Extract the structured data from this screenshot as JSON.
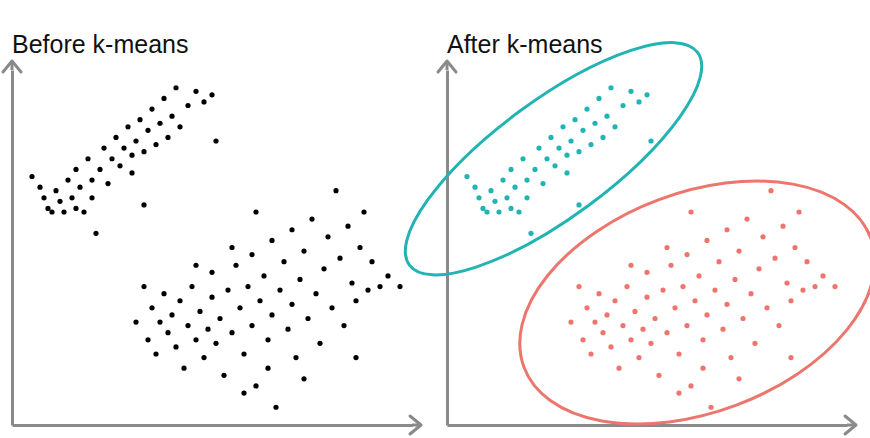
{
  "chart_data": [
    {
      "type": "scatter",
      "title": "Before k-means",
      "color": "#000000",
      "marker": "circle",
      "xlim": [
        0,
        10
      ],
      "ylim": [
        0,
        10
      ],
      "xticks": [],
      "yticks": [],
      "tick_labels": false,
      "x": [
        0.5,
        0.7,
        0.8,
        0.9,
        1.0,
        1.1,
        1.2,
        1.3,
        1.4,
        1.5,
        1.6,
        1.6,
        1.7,
        1.8,
        1.9,
        2.0,
        2.0,
        2.1,
        2.2,
        2.3,
        2.4,
        2.5,
        2.6,
        2.7,
        2.8,
        2.9,
        3.0,
        3.0,
        3.1,
        3.2,
        3.3,
        3.4,
        3.5,
        3.6,
        3.7,
        3.8,
        3.9,
        4.0,
        4.1,
        4.2,
        4.4,
        4.6,
        4.8,
        5.0,
        5.1,
        3.3,
        3.1,
        3.4,
        3.5,
        3.6,
        3.7,
        3.8,
        3.9,
        4.0,
        4.1,
        4.2,
        4.3,
        4.4,
        4.5,
        4.6,
        4.7,
        4.8,
        4.9,
        5.0,
        5.0,
        5.1,
        5.2,
        5.3,
        5.4,
        5.5,
        5.6,
        5.7,
        5.8,
        5.9,
        6.0,
        6.0,
        6.1,
        6.2,
        6.3,
        6.4,
        6.5,
        6.5,
        6.6,
        6.7,
        6.8,
        6.9,
        7.0,
        7.0,
        7.1,
        7.2,
        7.3,
        7.4,
        7.5,
        7.6,
        7.7,
        7.8,
        7.9,
        8.0,
        8.1,
        8.2,
        8.3,
        8.4,
        8.5,
        8.6,
        8.7,
        8.8,
        8.9,
        9.0,
        9.2,
        9.4,
        9.7,
        5.5,
        4.6,
        6.4,
        7.3,
        6.1,
        3.3,
        5.8,
        8.6
      ],
      "values": [
        7.0,
        6.7,
        6.4,
        6.1,
        6.0,
        6.6,
        6.3,
        6.0,
        6.9,
        6.4,
        6.1,
        7.2,
        6.7,
        6.0,
        7.5,
        6.9,
        6.4,
        5.4,
        7.2,
        7.8,
        6.8,
        7.5,
        8.1,
        7.3,
        7.8,
        8.4,
        7.6,
        7.1,
        8.0,
        8.6,
        7.7,
        8.3,
        8.9,
        7.9,
        8.5,
        9.2,
        8.1,
        8.7,
        9.5,
        8.4,
        9.0,
        9.4,
        9.1,
        9.3,
        8.0,
        6.2,
        2.9,
        2.4,
        3.3,
        2.0,
        2.9,
        3.7,
        2.6,
        3.1,
        2.2,
        3.5,
        1.6,
        2.8,
        3.9,
        2.4,
        3.2,
        1.9,
        2.7,
        3.6,
        4.3,
        2.3,
        3.0,
        1.4,
        3.8,
        2.6,
        4.5,
        3.3,
        2.0,
        3.9,
        2.8,
        4.8,
        1.1,
        3.5,
        4.2,
        2.4,
        5.2,
        3.1,
        0.5,
        3.8,
        4.6,
        2.7,
        5.5,
        3.4,
        1.9,
        4.1,
        4.9,
        3.0,
        5.8,
        3.7,
        2.3,
        4.4,
        5.3,
        3.3,
        6.6,
        4.7,
        2.8,
        5.6,
        4.0,
        3.5,
        5.0,
        6.0,
        3.8,
        4.6,
        3.9,
        4.2,
        3.9,
        5.0,
        4.5,
        1.6,
        1.3,
        6.0,
        3.9,
        0.9,
        1.9
      ]
    },
    {
      "type": "scatter",
      "title": "After k-means",
      "marker": "circle",
      "xlim": [
        0,
        10
      ],
      "ylim": [
        0,
        10
      ],
      "xticks": [],
      "yticks": [],
      "tick_labels": false,
      "series": [
        {
          "color": "#22b3b5",
          "x": [
            0.5,
            0.7,
            0.8,
            0.9,
            1.0,
            1.1,
            1.2,
            1.3,
            1.4,
            1.5,
            1.6,
            1.6,
            1.7,
            1.8,
            1.9,
            2.0,
            2.0,
            2.1,
            2.2,
            2.3,
            2.4,
            2.5,
            2.6,
            2.7,
            2.8,
            2.9,
            3.0,
            3.0,
            3.1,
            3.2,
            3.3,
            3.4,
            3.5,
            3.6,
            3.7,
            3.8,
            3.9,
            4.0,
            4.1,
            4.2,
            4.4,
            4.6,
            4.8,
            5.0,
            5.1,
            3.3
          ],
          "values": [
            7.0,
            6.7,
            6.4,
            6.1,
            6.0,
            6.6,
            6.3,
            6.0,
            6.9,
            6.4,
            6.1,
            7.2,
            6.7,
            6.0,
            7.5,
            6.9,
            6.4,
            5.4,
            7.2,
            7.8,
            6.8,
            7.5,
            8.1,
            7.3,
            7.8,
            8.4,
            7.6,
            7.1,
            8.0,
            8.6,
            7.7,
            8.3,
            8.9,
            7.9,
            8.5,
            9.2,
            8.1,
            8.7,
            9.5,
            8.4,
            9.0,
            9.4,
            9.1,
            9.3,
            8.0,
            6.2
          ]
        },
        {
          "color": "#ec766d",
          "x": [
            3.1,
            3.4,
            3.5,
            3.6,
            3.7,
            3.8,
            3.9,
            4.0,
            4.1,
            4.2,
            4.3,
            4.4,
            4.5,
            4.6,
            4.7,
            4.8,
            4.9,
            5.0,
            5.0,
            5.1,
            5.2,
            5.3,
            5.4,
            5.5,
            5.6,
            5.7,
            5.8,
            5.9,
            6.0,
            6.0,
            6.1,
            6.2,
            6.3,
            6.4,
            6.5,
            6.5,
            6.6,
            6.7,
            6.8,
            6.9,
            7.0,
            7.0,
            7.1,
            7.2,
            7.3,
            7.4,
            7.5,
            7.6,
            7.7,
            7.8,
            7.9,
            8.0,
            8.1,
            8.2,
            8.3,
            8.4,
            8.5,
            8.6,
            8.7,
            8.8,
            8.9,
            9.0,
            9.2,
            9.4,
            9.7,
            5.5,
            4.6,
            6.4,
            7.3,
            6.1,
            3.3,
            5.8,
            8.6
          ],
          "values": [
            2.9,
            2.4,
            3.3,
            2.0,
            2.9,
            3.7,
            2.6,
            3.1,
            2.2,
            3.5,
            1.6,
            2.8,
            3.9,
            2.4,
            3.2,
            1.9,
            2.7,
            3.6,
            4.3,
            2.3,
            3.0,
            1.4,
            3.8,
            2.6,
            4.5,
            3.3,
            2.0,
            3.9,
            2.8,
            4.8,
            1.1,
            3.5,
            4.2,
            2.4,
            5.2,
            3.1,
            0.5,
            3.8,
            4.6,
            2.7,
            5.5,
            3.4,
            1.9,
            4.1,
            4.9,
            3.0,
            5.8,
            3.7,
            2.3,
            4.4,
            5.3,
            3.3,
            6.6,
            4.7,
            2.8,
            5.6,
            4.0,
            3.5,
            5.0,
            6.0,
            3.8,
            4.6,
            3.9,
            4.2,
            3.9,
            5.0,
            4.5,
            1.6,
            1.3,
            6.0,
            3.9,
            0.9,
            1.9
          ]
        }
      ]
    }
  ]
}
